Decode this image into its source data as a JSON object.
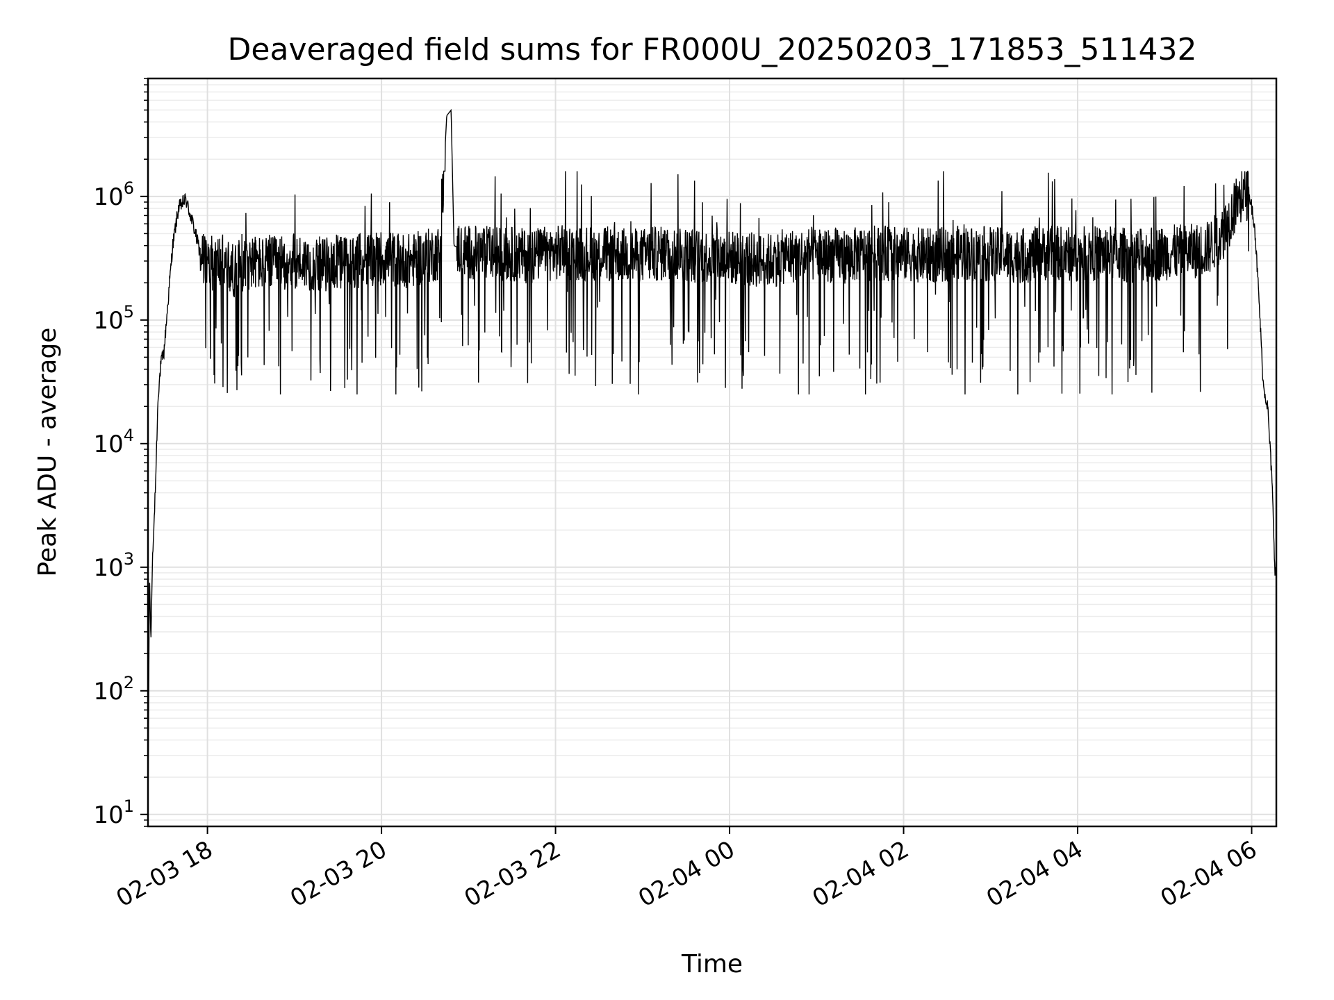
{
  "chart_data": {
    "type": "line",
    "title": "Deaveraged field sums for FR000U_20250203_171853_511432",
    "xlabel": "Time",
    "ylabel": "Peak ADU - average",
    "yscale": "log",
    "grid": true,
    "line_color": "#000000",
    "xlim": [
      "2025-02-03 17:19",
      "2025-02-04 06:17"
    ],
    "ylim": [
      8,
      9000000
    ],
    "x_ticks": [
      "2025-02-03 18:00",
      "2025-02-03 20:00",
      "2025-02-03 22:00",
      "2025-02-04 00:00",
      "2025-02-04 02:00",
      "2025-02-04 04:00",
      "2025-02-04 06:00"
    ],
    "x_tick_labels": [
      "02-03 18",
      "02-03 20",
      "02-03 22",
      "02-04 00",
      "02-04 02",
      "02-04 04",
      "02-04 06"
    ],
    "y_ticks": [
      10,
      100,
      1000,
      10000,
      100000,
      1000000
    ],
    "y_tick_labels": [
      {
        "base": "10",
        "exp": "1"
      },
      {
        "base": "10",
        "exp": "2"
      },
      {
        "base": "10",
        "exp": "3"
      },
      {
        "base": "10",
        "exp": "4"
      },
      {
        "base": "10",
        "exp": "5"
      },
      {
        "base": "10",
        "exp": "6"
      }
    ],
    "series": [
      {
        "x": [
          "2025-02-03 17:19",
          "2025-02-03 17:20",
          "2025-02-03 17:21",
          "2025-02-03 17:22",
          "2025-02-03 17:24",
          "2025-02-03 17:26",
          "2025-02-03 17:28",
          "2025-02-03 17:30",
          "2025-02-03 17:33",
          "2025-02-03 17:36",
          "2025-02-03 17:40",
          "2025-02-03 17:45",
          "2025-02-03 17:50",
          "2025-02-03 17:55",
          "2025-02-03 18:00",
          "2025-02-03 18:10",
          "2025-02-03 18:17",
          "2025-02-03 18:30",
          "2025-02-03 18:40",
          "2025-02-03 19:00",
          "2025-02-03 19:20",
          "2025-02-03 19:40",
          "2025-02-03 20:00",
          "2025-02-03 20:20",
          "2025-02-03 20:40",
          "2025-02-03 20:45",
          "2025-02-03 20:48",
          "2025-02-03 20:50",
          "2025-02-03 21:00",
          "2025-02-03 21:20",
          "2025-02-03 21:40",
          "2025-02-03 22:00",
          "2025-02-03 22:20",
          "2025-02-03 22:40",
          "2025-02-03 22:55",
          "2025-02-03 23:20",
          "2025-02-03 23:40",
          "2025-02-04 00:00",
          "2025-02-04 00:25",
          "2025-02-04 00:40",
          "2025-02-04 01:00",
          "2025-02-04 01:20",
          "2025-02-04 01:40",
          "2025-02-04 02:00",
          "2025-02-04 02:20",
          "2025-02-04 02:40",
          "2025-02-04 03:00",
          "2025-02-04 03:20",
          "2025-02-04 03:40",
          "2025-02-04 04:00",
          "2025-02-04 04:20",
          "2025-02-04 04:40",
          "2025-02-04 05:00",
          "2025-02-04 05:20",
          "2025-02-04 05:30",
          "2025-02-04 05:40",
          "2025-02-04 05:50",
          "2025-02-04 05:58",
          "2025-02-04 06:02",
          "2025-02-04 06:05",
          "2025-02-04 06:08",
          "2025-02-04 06:11",
          "2025-02-04 06:14",
          "2025-02-04 06:16",
          "2025-02-04 06:17"
        ],
        "y": [
          9,
          900,
          250,
          1000,
          4000,
          25000,
          45000,
          55000,
          150000,
          400000,
          800000,
          950000,
          600000,
          350000,
          280000,
          300000,
          250000,
          300000,
          280000,
          300000,
          280000,
          300000,
          320000,
          300000,
          350000,
          4500000,
          5000000,
          400000,
          350000,
          350000,
          330000,
          350000,
          350000,
          340000,
          330000,
          350000,
          330000,
          320000,
          300000,
          330000,
          340000,
          330000,
          350000,
          340000,
          330000,
          350000,
          340000,
          330000,
          350000,
          340000,
          350000,
          330000,
          350000,
          360000,
          380000,
          500000,
          900000,
          1100000,
          600000,
          150000,
          30000,
          20000,
          5000,
          1000,
          800
        ]
      }
    ],
    "noise": {
      "description_values": "per-sample fluctuations seen in the original trace",
      "min_dip": 25000,
      "max_peak": 1600000
    }
  }
}
